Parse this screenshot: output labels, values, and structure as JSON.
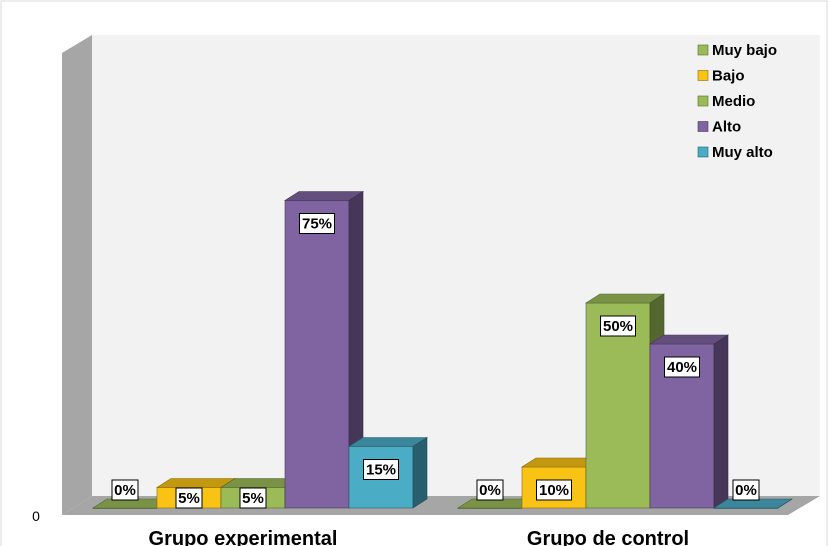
{
  "chart_data": {
    "type": "bar",
    "categories": [
      "Grupo experimental",
      "Grupo de control"
    ],
    "series": [
      {
        "name": "Muy bajo",
        "values": [
          0,
          0
        ],
        "color": "#9BBB59"
      },
      {
        "name": "Bajo",
        "values": [
          5,
          10
        ],
        "color": "#F9C316"
      },
      {
        "name": "Medio",
        "values": [
          5,
          50
        ],
        "color": "#9BBB59"
      },
      {
        "name": "Alto",
        "values": [
          75,
          40
        ],
        "color": "#8064A2"
      },
      {
        "name": "Muy alto",
        "values": [
          15,
          0
        ],
        "color": "#4BACC6"
      }
    ],
    "data_labels": [
      [
        "0%",
        "5%",
        "5%",
        "75%",
        "15%"
      ],
      [
        "0%",
        "10%",
        "50%",
        "40%",
        "0%"
      ]
    ],
    "y_tick_label": "0",
    "ylim": [
      0,
      100
    ],
    "legend_position": "top-right",
    "style": "3d-clustered-column"
  }
}
